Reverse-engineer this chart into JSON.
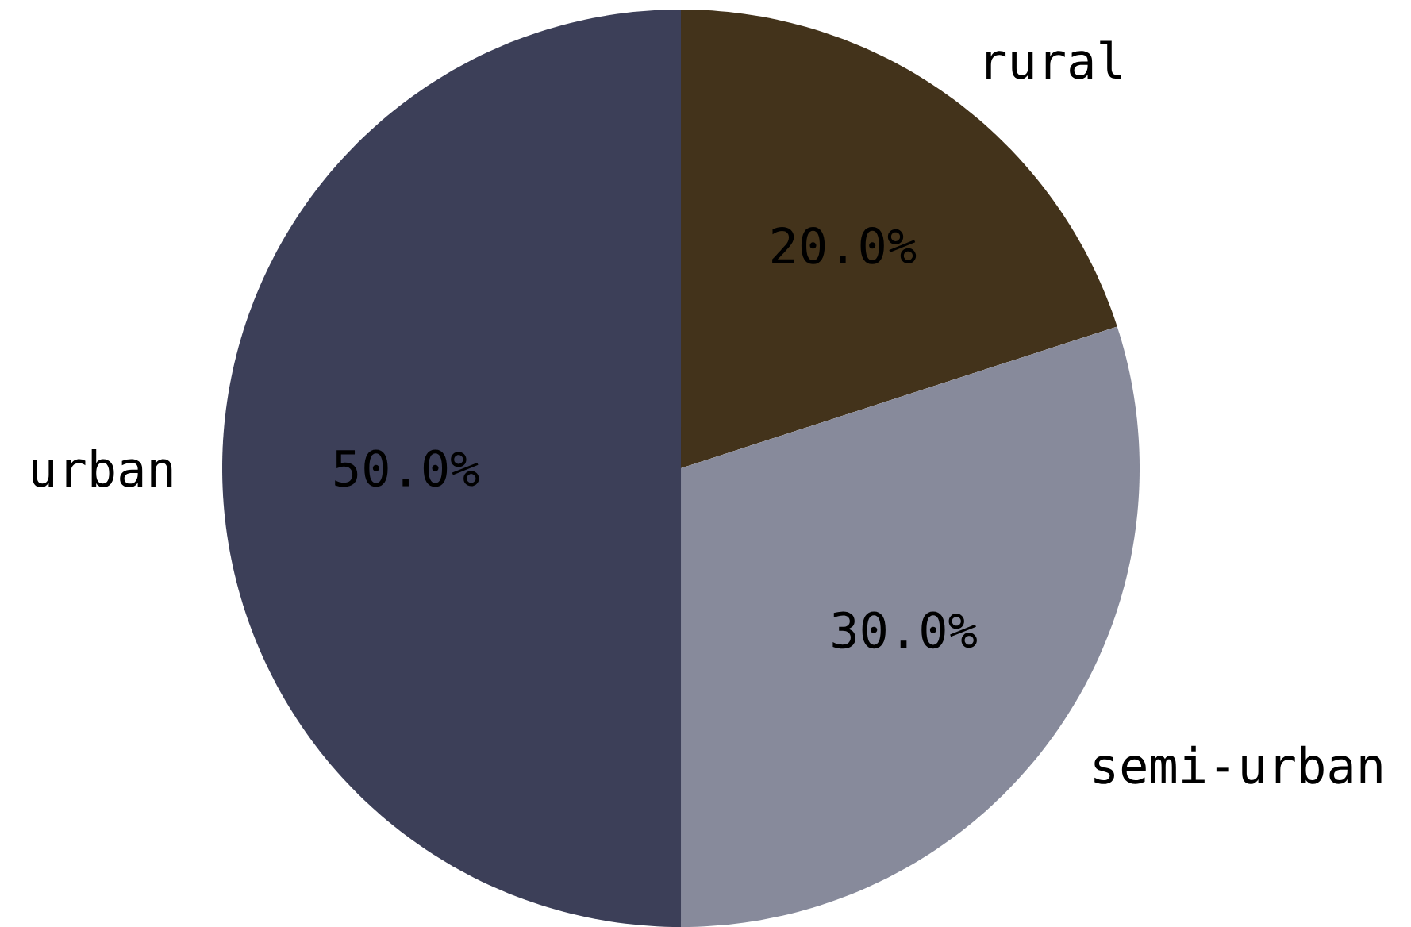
{
  "chart_data": {
    "type": "pie",
    "categories": [
      "rural",
      "semi-urban",
      "urban"
    ],
    "values": [
      20,
      30,
      50
    ],
    "colors": [
      "#43331b",
      "#878a9b",
      "#3c3f58"
    ],
    "value_labels": [
      "20.0%",
      "30.0%",
      "50.0%"
    ]
  }
}
